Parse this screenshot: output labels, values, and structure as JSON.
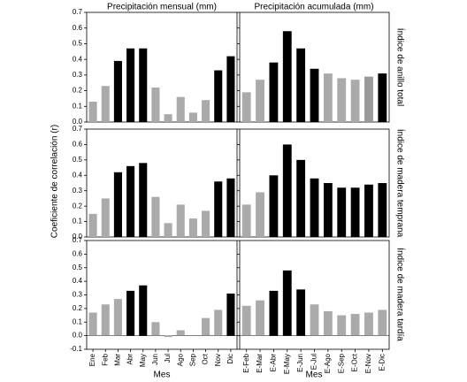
{
  "column_titles": [
    "Precipitación mensual (mm)",
    "Precipitación acumulada (mm)"
  ],
  "row_labels": [
    "Índice de anillo total",
    "Índice de madera temprana",
    "Índice de madera tardía"
  ],
  "y_label": "Coeficiente de correlación (r)",
  "x_labels": [
    "Mes",
    "Mes"
  ],
  "chart_data": [
    {
      "type": "bar",
      "values": [
        0.13,
        0.23,
        0.39,
        0.47,
        0.47,
        0.22,
        0.05,
        0.16,
        0.06,
        0.14,
        0.33,
        0.42
      ],
      "colors": [
        "#aaaaaa",
        "#aaaaaa",
        "#000000",
        "#000000",
        "#000000",
        "#aaaaaa",
        "#aaaaaa",
        "#aaaaaa",
        "#aaaaaa",
        "#aaaaaa",
        "#000000",
        "#000000"
      ],
      "ylim": [
        0,
        0.7
      ],
      "yticks": [
        {
          "value": 0,
          "label": "0.0"
        },
        0.1,
        0.2,
        0.3,
        0.4,
        0.5,
        0.6,
        0.7
      ]
    },
    {
      "type": "bar",
      "values": [
        0.19,
        0.27,
        0.38,
        0.58,
        0.47,
        0.34,
        0.31,
        0.28,
        0.27,
        0.29,
        0.31
      ],
      "colors": [
        "#aaaaaa",
        "#aaaaaa",
        "#000000",
        "#000000",
        "#000000",
        "#000000",
        "#aaaaaa",
        "#aaaaaa",
        "#aaaaaa",
        "#999999",
        "#000000"
      ],
      "ylim": [
        0,
        0.7
      ],
      "yticks": [
        0,
        0.1,
        0.2,
        0.3,
        0.4,
        0.5,
        0.6,
        0.7
      ]
    },
    {
      "type": "bar",
      "values": [
        0.15,
        0.25,
        0.42,
        0.46,
        0.48,
        0.26,
        0.09,
        0.21,
        0.12,
        0.17,
        0.36,
        0.38
      ],
      "colors": [
        "#aaaaaa",
        "#aaaaaa",
        "#000000",
        "#000000",
        "#000000",
        "#aaaaaa",
        "#aaaaaa",
        "#aaaaaa",
        "#aaaaaa",
        "#aaaaaa",
        "#000000",
        "#000000"
      ],
      "ylim": [
        0,
        0.7
      ],
      "yticks": [
        {
          "value": 0,
          "label": "0.0"
        },
        0.1,
        0.2,
        0.3,
        0.4,
        0.5,
        0.6,
        0.7
      ]
    },
    {
      "type": "bar",
      "values": [
        0.21,
        0.29,
        0.4,
        0.6,
        0.5,
        0.38,
        0.35,
        0.32,
        0.32,
        0.34,
        0.35
      ],
      "colors": [
        "#aaaaaa",
        "#aaaaaa",
        "#000000",
        "#000000",
        "#000000",
        "#000000",
        "#000000",
        "#000000",
        "#000000",
        "#000000",
        "#000000"
      ],
      "ylim": [
        0,
        0.7
      ],
      "yticks": [
        0,
        0.1,
        0.2,
        0.3,
        0.4,
        0.5,
        0.6,
        0.7
      ]
    },
    {
      "type": "bar",
      "categories": [
        "Ene",
        "Feb",
        "Mar",
        "Abr",
        "May",
        "Jun",
        "Jul",
        "Ago",
        "Sep",
        "Oct",
        "Nov",
        "Dic"
      ],
      "values": [
        0.17,
        0.23,
        0.27,
        0.33,
        0.37,
        0.1,
        -0.01,
        0.04,
        0,
        0.13,
        0.19,
        0.31
      ],
      "colors": [
        "#aaaaaa",
        "#aaaaaa",
        "#aaaaaa",
        "#000000",
        "#000000",
        "#aaaaaa",
        "#aaaaaa",
        "#aaaaaa",
        "#aaaaaa",
        "#aaaaaa",
        "#aaaaaa",
        "#000000"
      ],
      "ylim": [
        -0.1,
        0.7
      ],
      "yticks": [
        -0.1,
        {
          "value": 0,
          "label": "0.0"
        },
        0.1,
        0.2,
        0.3,
        0.4,
        0.5,
        0.6,
        0.7
      ]
    },
    {
      "type": "bar",
      "categories": [
        "E-Feb",
        "E-Mar",
        "E-Abr",
        "E-May",
        "E-Jun",
        "E-Jul",
        "E-Ago",
        "E-Sep",
        "E-Oct",
        "E-Nov",
        "E-Dic"
      ],
      "values": [
        0.22,
        0.26,
        0.33,
        0.48,
        0.34,
        0.23,
        0.18,
        0.15,
        0.16,
        0.17,
        0.19
      ],
      "colors": [
        "#aaaaaa",
        "#aaaaaa",
        "#000000",
        "#000000",
        "#000000",
        "#aaaaaa",
        "#aaaaaa",
        "#aaaaaa",
        "#aaaaaa",
        "#aaaaaa",
        "#aaaaaa"
      ],
      "ylim": [
        -0.1,
        0.7
      ],
      "yticks": [
        -0.1,
        0,
        0.1,
        0.2,
        0.3,
        0.4,
        0.5,
        0.6,
        0.7
      ]
    }
  ]
}
